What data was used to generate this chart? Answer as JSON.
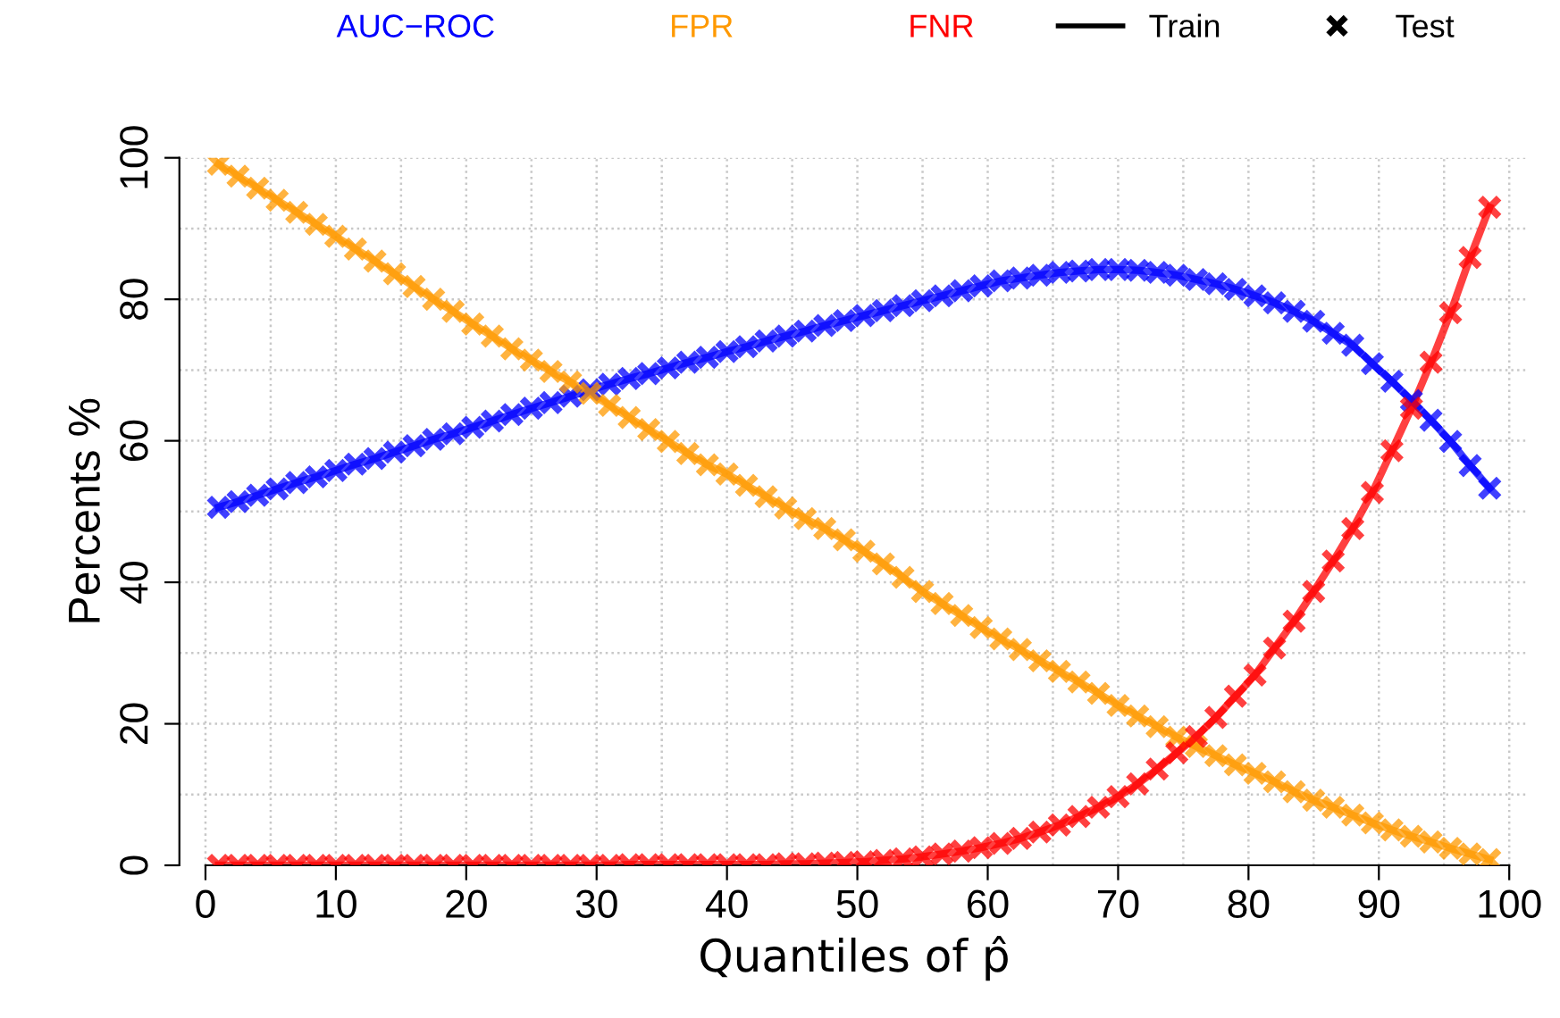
{
  "chart_data": {
    "type": "line",
    "xlabel": "Quantiles of p̂",
    "ylabel": "Percents %",
    "annotations": [
      "Train",
      "Test"
    ],
    "x": [
      1,
      2.5,
      4,
      5.5,
      7,
      8.5,
      10,
      11.5,
      13,
      14.5,
      16,
      17.5,
      19,
      20.5,
      22,
      23.5,
      25,
      26.5,
      28,
      29.5,
      31,
      32.5,
      34,
      35.5,
      37,
      38.5,
      40,
      41.5,
      43,
      44.5,
      46,
      47.5,
      49,
      50.5,
      52,
      53.5,
      55,
      56.5,
      58,
      59.5,
      61,
      62.5,
      64,
      65.5,
      67,
      68.5,
      70,
      71.5,
      73,
      74.5,
      76,
      77.5,
      79,
      80.5,
      82,
      83.5,
      85,
      86.5,
      88,
      89.5,
      91,
      92.5,
      94,
      95.5,
      97,
      98.5
    ],
    "series": [
      {
        "name": "AUC−ROC",
        "color": "#0000ff",
        "values": [
          50.6,
          51.4,
          52.3,
          53.2,
          54.1,
          54.9,
          55.8,
          56.7,
          57.5,
          58.4,
          59.3,
          60.2,
          61.0,
          61.9,
          62.8,
          63.7,
          64.6,
          65.4,
          66.3,
          67.2,
          68.0,
          68.8,
          69.5,
          70.3,
          71.1,
          71.8,
          72.6,
          73.3,
          74.1,
          74.8,
          75.5,
          76.3,
          77.0,
          77.7,
          78.4,
          79.1,
          79.8,
          80.5,
          81.2,
          81.9,
          82.6,
          83.0,
          83.4,
          83.8,
          84.0,
          84.2,
          84.2,
          84.1,
          83.8,
          83.4,
          82.8,
          82.2,
          81.4,
          80.5,
          79.5,
          78.3,
          76.9,
          75.2,
          73.5,
          70.9,
          68.4,
          65.7,
          62.9,
          59.9,
          56.5,
          53.3
        ]
      },
      {
        "name": "FPR",
        "color": "#ff9900",
        "values": [
          99.1,
          97.4,
          95.7,
          94.0,
          92.3,
          90.6,
          88.9,
          87.1,
          85.4,
          83.6,
          81.8,
          80.0,
          78.3,
          76.5,
          74.8,
          73.0,
          71.4,
          69.8,
          68.3,
          66.7,
          65.0,
          63.3,
          61.6,
          59.9,
          58.2,
          56.6,
          55.3,
          53.7,
          52.1,
          50.5,
          49.0,
          47.6,
          46.0,
          44.4,
          42.6,
          40.7,
          38.7,
          37.0,
          35.3,
          33.6,
          32.0,
          30.5,
          28.9,
          27.4,
          25.9,
          24.3,
          22.6,
          21.1,
          19.6,
          18.1,
          16.8,
          15.5,
          14.2,
          13.0,
          11.8,
          10.4,
          9.2,
          8.2,
          7.1,
          6.0,
          5.0,
          4.1,
          3.3,
          2.4,
          1.6,
          0.8
        ]
      },
      {
        "name": "FNR",
        "color": "#ff0000",
        "values": [
          0,
          0,
          0,
          0,
          0,
          0,
          0,
          0,
          0,
          0,
          0,
          0,
          0,
          0,
          0,
          0,
          0,
          0,
          0,
          0,
          0,
          0.1,
          0.1,
          0.1,
          0.1,
          0.1,
          0.1,
          0.1,
          0.1,
          0.2,
          0.2,
          0.3,
          0.4,
          0.5,
          0.7,
          0.9,
          1.2,
          1.6,
          2.0,
          2.5,
          3.1,
          3.8,
          4.7,
          5.7,
          6.9,
          8.2,
          9.7,
          11.5,
          13.6,
          15.9,
          18.2,
          20.9,
          23.9,
          26.9,
          30.7,
          34.5,
          38.7,
          43.0,
          47.6,
          52.7,
          58.6,
          64.6,
          71.1,
          78.1,
          85.9,
          93.0
        ]
      },
      {
        "type": "scatter",
        "marker": "cross",
        "color": "#0000ff",
        "values": [
          50.6,
          51.4,
          52.3,
          53.2,
          54.1,
          54.9,
          55.8,
          56.7,
          57.5,
          58.4,
          59.3,
          60.2,
          61.0,
          61.9,
          62.8,
          63.7,
          64.6,
          65.4,
          66.3,
          67.2,
          68.0,
          68.8,
          69.5,
          70.3,
          71.1,
          71.8,
          72.6,
          73.3,
          74.1,
          74.8,
          75.5,
          76.3,
          77.0,
          77.7,
          78.4,
          79.1,
          79.8,
          80.5,
          81.2,
          81.9,
          82.6,
          83.0,
          83.4,
          83.8,
          84.0,
          84.2,
          84.2,
          84.1,
          83.8,
          83.4,
          82.8,
          82.2,
          81.4,
          80.5,
          79.5,
          78.3,
          76.9,
          75.2,
          73.5,
          70.9,
          68.4,
          65.7,
          62.9,
          59.9,
          56.5,
          53.3
        ]
      },
      {
        "type": "scatter",
        "marker": "cross",
        "color": "#ff9900",
        "values": [
          99.1,
          97.4,
          95.7,
          94.0,
          92.3,
          90.6,
          88.9,
          87.1,
          85.4,
          83.6,
          81.8,
          80.0,
          78.3,
          76.5,
          74.8,
          73.0,
          71.4,
          69.8,
          68.3,
          66.7,
          65.0,
          63.3,
          61.6,
          59.9,
          58.2,
          56.6,
          55.3,
          53.7,
          52.1,
          50.5,
          49.0,
          47.6,
          46.0,
          44.4,
          42.6,
          40.7,
          38.7,
          37.0,
          35.3,
          33.6,
          32.0,
          30.5,
          28.9,
          27.4,
          25.9,
          24.3,
          22.6,
          21.1,
          19.6,
          18.1,
          16.8,
          15.5,
          14.2,
          13.0,
          11.8,
          10.4,
          9.2,
          8.2,
          7.1,
          6.0,
          5.0,
          4.1,
          3.3,
          2.4,
          1.6,
          0.8
        ]
      },
      {
        "type": "scatter",
        "marker": "cross",
        "color": "#ff0000",
        "values": [
          0,
          0,
          0,
          0,
          0,
          0,
          0,
          0,
          0,
          0,
          0,
          0,
          0,
          0,
          0,
          0,
          0,
          0,
          0,
          0,
          0,
          0.1,
          0.1,
          0.1,
          0.1,
          0.1,
          0.1,
          0.1,
          0.1,
          0.2,
          0.2,
          0.3,
          0.4,
          0.5,
          0.7,
          0.9,
          1.2,
          1.6,
          2.0,
          2.5,
          3.1,
          3.8,
          4.7,
          5.7,
          6.9,
          8.2,
          9.7,
          11.5,
          13.6,
          15.9,
          18.2,
          20.9,
          23.9,
          26.9,
          30.7,
          34.5,
          38.7,
          43.0,
          47.6,
          52.7,
          58.6,
          64.6,
          71.1,
          78.1,
          85.9,
          93.0
        ]
      }
    ],
    "xlim": [
      -2,
      101.5
    ],
    "ylim": [
      0,
      100
    ],
    "xticks": [
      0,
      10,
      20,
      30,
      40,
      50,
      60,
      70,
      80,
      90,
      100
    ],
    "yticks": [
      0,
      20,
      40,
      60,
      80,
      100
    ],
    "grid": true,
    "legend": "top",
    "line_style": "solid"
  }
}
